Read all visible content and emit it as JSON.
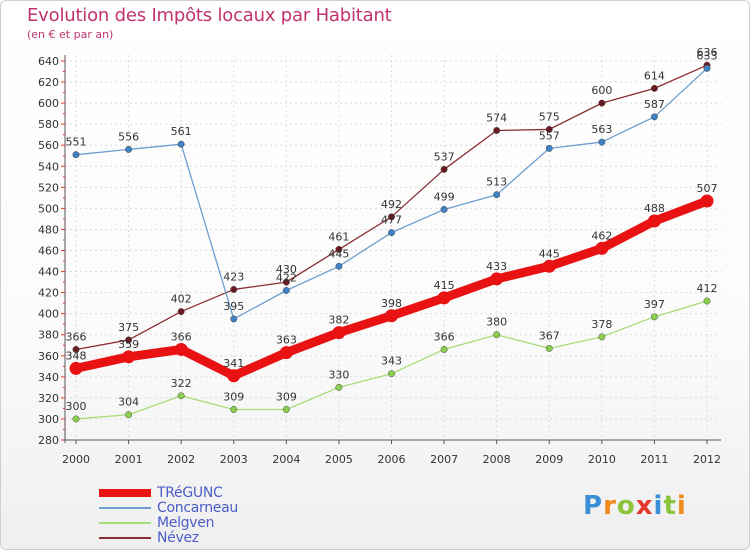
{
  "chart_data": {
    "type": "line",
    "title": "Evolution des Impôts locaux par Habitant",
    "subtitle": "(en € et par an)",
    "categories": [
      "2000",
      "2001",
      "2002",
      "2003",
      "2004",
      "2005",
      "2006",
      "2007",
      "2008",
      "2009",
      "2010",
      "2011",
      "2012"
    ],
    "yticks": [
      280,
      300,
      320,
      340,
      360,
      380,
      400,
      420,
      440,
      460,
      480,
      500,
      520,
      540,
      560,
      580,
      600,
      620,
      640
    ],
    "ylim": [
      280,
      640
    ],
    "grid": true,
    "series": [
      {
        "name": "Névez",
        "color": "#8b2e33",
        "marker": "#6b1a20",
        "values": [
          366,
          375,
          402,
          423,
          430,
          461,
          492,
          537,
          574,
          575,
          600,
          614,
          636
        ],
        "labels": [
          "366",
          "375",
          "402",
          "423",
          "430",
          "461",
          "492",
          "537",
          "574",
          "575",
          "600",
          "614",
          "636"
        ]
      },
      {
        "name": "Concarneau",
        "color": "#6e9fd0",
        "marker": "#3f82c4",
        "values": [
          551,
          556,
          561,
          395,
          422,
          445,
          477,
          499,
          513,
          557,
          563,
          587,
          633
        ],
        "labels": [
          "551",
          "556",
          "561",
          "395",
          "422",
          "445",
          "477",
          "499",
          "513",
          "557",
          "563",
          "587",
          "633"
        ]
      },
      {
        "name": "Melgven",
        "color": "#a7dd78",
        "marker": "#8ccf4f",
        "values": [
          300,
          304,
          322,
          309,
          309,
          330,
          343,
          366,
          380,
          367,
          378,
          397,
          412
        ],
        "labels": [
          "300",
          "304",
          "322",
          "309",
          "309",
          "330",
          "343",
          "366",
          "380",
          "367",
          "378",
          "397",
          "412"
        ]
      },
      {
        "name": "TRéGUNC",
        "color": "#e81212",
        "marker": "#e81212",
        "values": [
          348,
          359,
          366,
          341,
          363,
          382,
          398,
          415,
          433,
          445,
          462,
          488,
          507
        ],
        "labels": [
          "348",
          "359",
          "366",
          "341",
          "363",
          "382",
          "398",
          "415",
          "433",
          "445",
          "462",
          "488",
          "507"
        ]
      }
    ],
    "legend": [
      "TRéGUNC",
      "Concarneau",
      "Melgven",
      "Névez"
    ]
  },
  "legend_items": [
    {
      "label": "TRéGUNC",
      "color": "#e81212"
    },
    {
      "label": "Concarneau",
      "color": "#6e9fd0"
    },
    {
      "label": "Melgven",
      "color": "#a7dd78"
    },
    {
      "label": "Névez",
      "color": "#8b2e33"
    }
  ],
  "brand": {
    "letters": [
      "P",
      "r",
      "o",
      "x",
      "i",
      "t",
      "i"
    ],
    "colors": [
      "#3a8fd6",
      "#f08a1c",
      "#8cc43c",
      "#e23b2e",
      "#3a8fd6",
      "#8cc43c",
      "#f08a1c"
    ]
  }
}
